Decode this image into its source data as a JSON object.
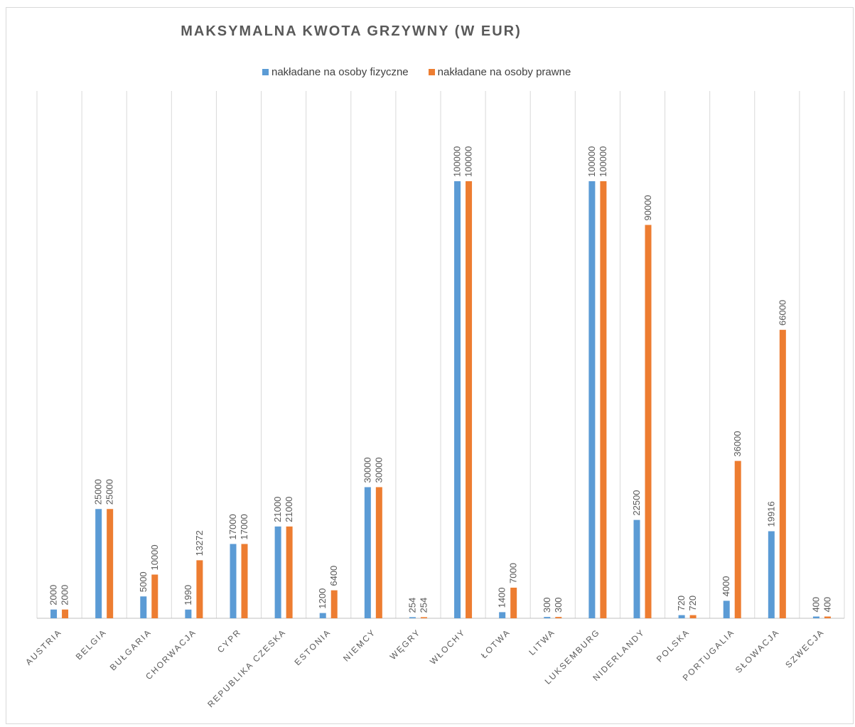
{
  "chart_data": {
    "type": "bar",
    "title": "MAKSYMALNA KWOTA GRZYWNY (W EUR)",
    "categories": [
      "AUSTRIA",
      "BELGIA",
      "BUŁGARIA",
      "CHORWACJA",
      "CYPR",
      "REPUBLIKA CZESKA",
      "ESTONIA",
      "NIEMCY",
      "WĘGRY",
      "WŁOCHY",
      "ŁOTWA",
      "LITWA",
      "LUKSEMBURG",
      "NIDERLANDY",
      "POLSKA",
      "PORTUGALIA",
      "SŁOWACJA",
      "SZWECJA"
    ],
    "series": [
      {
        "name": "nakładane na osoby fizyczne",
        "color": "#5b9bd5",
        "values": [
          2000,
          25000,
          5000,
          1990,
          17000,
          21000,
          1200,
          30000,
          254,
          100000,
          1400,
          300,
          100000,
          22500,
          720,
          4000,
          19916,
          400
        ]
      },
      {
        "name": "nakładane na osoby prawne",
        "color": "#ed7d31",
        "values": [
          2000,
          25000,
          10000,
          13272,
          17000,
          21000,
          6400,
          30000,
          254,
          100000,
          7000,
          300,
          100000,
          90000,
          720,
          36000,
          66000,
          400
        ]
      }
    ],
    "ylim": [
      0,
      100000
    ],
    "grid": "vertical",
    "legend_position": "top",
    "data_labels": true
  }
}
